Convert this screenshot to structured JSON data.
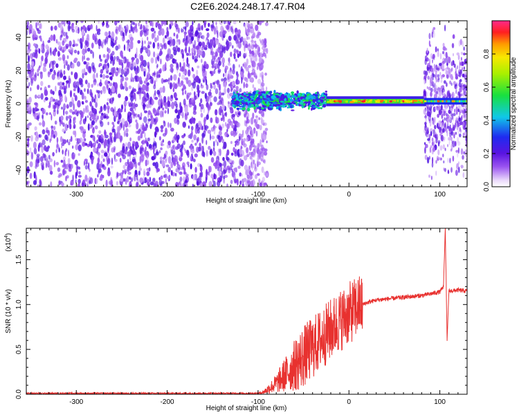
{
  "title": "C2E6.2024.248.17.47.R04",
  "chart_data": [
    {
      "type": "heatmap",
      "xlabel": "Height of straight line (km)",
      "ylabel": "Frequency (Hz)",
      "xlim": [
        -355,
        130
      ],
      "ylim": [
        -50,
        50
      ],
      "x_ticks": [
        -300,
        -200,
        -100,
        0,
        100
      ],
      "y_ticks": [
        -40,
        -20,
        0,
        20,
        40
      ],
      "x_tick_labels": [
        "-300",
        "-200",
        "-100",
        "0",
        "100"
      ],
      "y_tick_labels": [
        "-40",
        "-20",
        "0",
        "20",
        "40"
      ],
      "colorbar": {
        "label": "Normalized spectral amplitude",
        "range": [
          0,
          1
        ],
        "ticks": [
          0.0,
          0.2,
          0.4,
          0.6,
          0.8
        ],
        "tick_labels": [
          "0.0",
          "0.2",
          "0.4",
          "0.6",
          "0.8"
        ],
        "colormap": "rainbow (white-violet-blue-cyan-green-yellow-orange-red-magenta)"
      },
      "regions": [
        {
          "x_range": [
            -355,
            -98
          ],
          "freq_range": [
            -50,
            50
          ],
          "amplitude": "low, broadband noise"
        },
        {
          "x_range": [
            -128,
            -25
          ],
          "freq_center": 2,
          "freq_halfwidth": 6,
          "amplitude": "moderate, 0.2-0.5"
        },
        {
          "x_range": [
            -25,
            85
          ],
          "freq_center": 1.5,
          "freq_halfwidth": 1.5,
          "amplitude": "high, 0.5-1.0"
        },
        {
          "x_range": [
            83,
            130
          ],
          "freq_range": [
            -48,
            48
          ],
          "amplitude": "low broadband plus narrow carrier near 1.5 Hz"
        }
      ]
    },
    {
      "type": "line",
      "xlabel": "Height of straight line (km)",
      "ylabel": "SNR (10 * v/v)",
      "y_multiplier": "(x10",
      "y_multiplier_exp": "4",
      "xlim": [
        -355,
        130
      ],
      "ylim": [
        0,
        1.85
      ],
      "x_ticks": [
        -300,
        -200,
        -100,
        0,
        100
      ],
      "y_ticks": [
        0.0,
        0.5,
        1.0,
        1.5
      ],
      "x_tick_labels": [
        "-300",
        "-200",
        "-100",
        "0",
        "100"
      ],
      "y_tick_labels": [
        "0.0",
        "0.5",
        "1.0",
        "1.5"
      ],
      "series": [
        {
          "color": "#e8312f",
          "x": [
            -355,
            -300,
            -200,
            -120,
            -100,
            -95,
            -90,
            -80,
            -70,
            -60,
            -50,
            -40,
            -30,
            -20,
            -10,
            0,
            10,
            20,
            30,
            40,
            50,
            60,
            70,
            80,
            90,
            100,
            104,
            106,
            108,
            110,
            120,
            130
          ],
          "y": [
            0.01,
            0.01,
            0.01,
            0.01,
            0.01,
            0.02,
            0.05,
            0.12,
            0.22,
            0.32,
            0.42,
            0.52,
            0.62,
            0.72,
            0.82,
            0.9,
            0.98,
            1.02,
            1.05,
            1.06,
            1.07,
            1.08,
            1.09,
            1.1,
            1.12,
            1.14,
            1.2,
            1.85,
            0.6,
            1.15,
            1.16,
            1.15
          ]
        }
      ]
    }
  ]
}
